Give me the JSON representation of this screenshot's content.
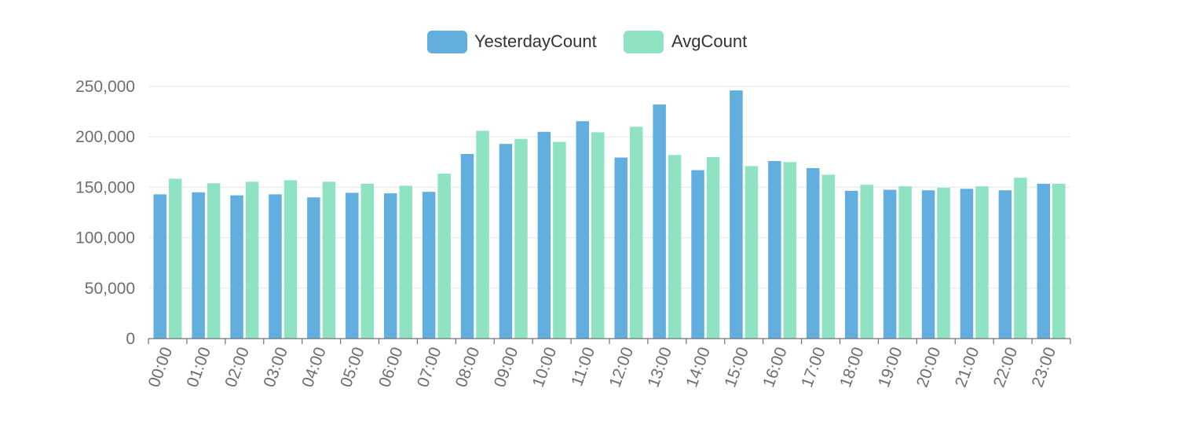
{
  "colors": {
    "yesterday": "#62aedf",
    "avg": "#8fe3c3",
    "grid": "#e3e6f3",
    "axis": "#6e7079",
    "tick_text": "#6e6e6e",
    "legend_text": "#333333"
  },
  "chart_data": {
    "type": "bar",
    "title": "",
    "xlabel": "",
    "ylabel": "",
    "legend_position": "top-center",
    "grid": true,
    "ylim": [
      0,
      250000
    ],
    "y_ticks": [
      0,
      50000,
      100000,
      150000,
      200000,
      250000
    ],
    "y_tick_labels": [
      "0",
      "50,000",
      "100,000",
      "150,000",
      "200,000",
      "250,000"
    ],
    "categories": [
      "00:00",
      "01:00",
      "02:00",
      "03:00",
      "04:00",
      "05:00",
      "06:00",
      "07:00",
      "08:00",
      "09:00",
      "10:00",
      "11:00",
      "12:00",
      "13:00",
      "14:00",
      "15:00",
      "16:00",
      "17:00",
      "18:00",
      "19:00",
      "20:00",
      "21:00",
      "22:00",
      "23:00"
    ],
    "series": [
      {
        "name": "YesterdayCount",
        "color": "#62aedf",
        "values": [
          143000,
          145000,
          142000,
          143000,
          140000,
          144500,
          144000,
          145500,
          183000,
          193000,
          205000,
          215500,
          179500,
          232000,
          167000,
          246000,
          176000,
          169000,
          146500,
          147500,
          147000,
          148500,
          147000,
          153500
        ]
      },
      {
        "name": "AvgCount",
        "color": "#8fe3c3",
        "values": [
          158500,
          154000,
          155500,
          157000,
          155500,
          153500,
          151500,
          163500,
          206000,
          198000,
          195000,
          204500,
          210000,
          182000,
          180000,
          171000,
          175000,
          162500,
          152500,
          151000,
          149500,
          151000,
          159500,
          153500
        ]
      }
    ]
  }
}
